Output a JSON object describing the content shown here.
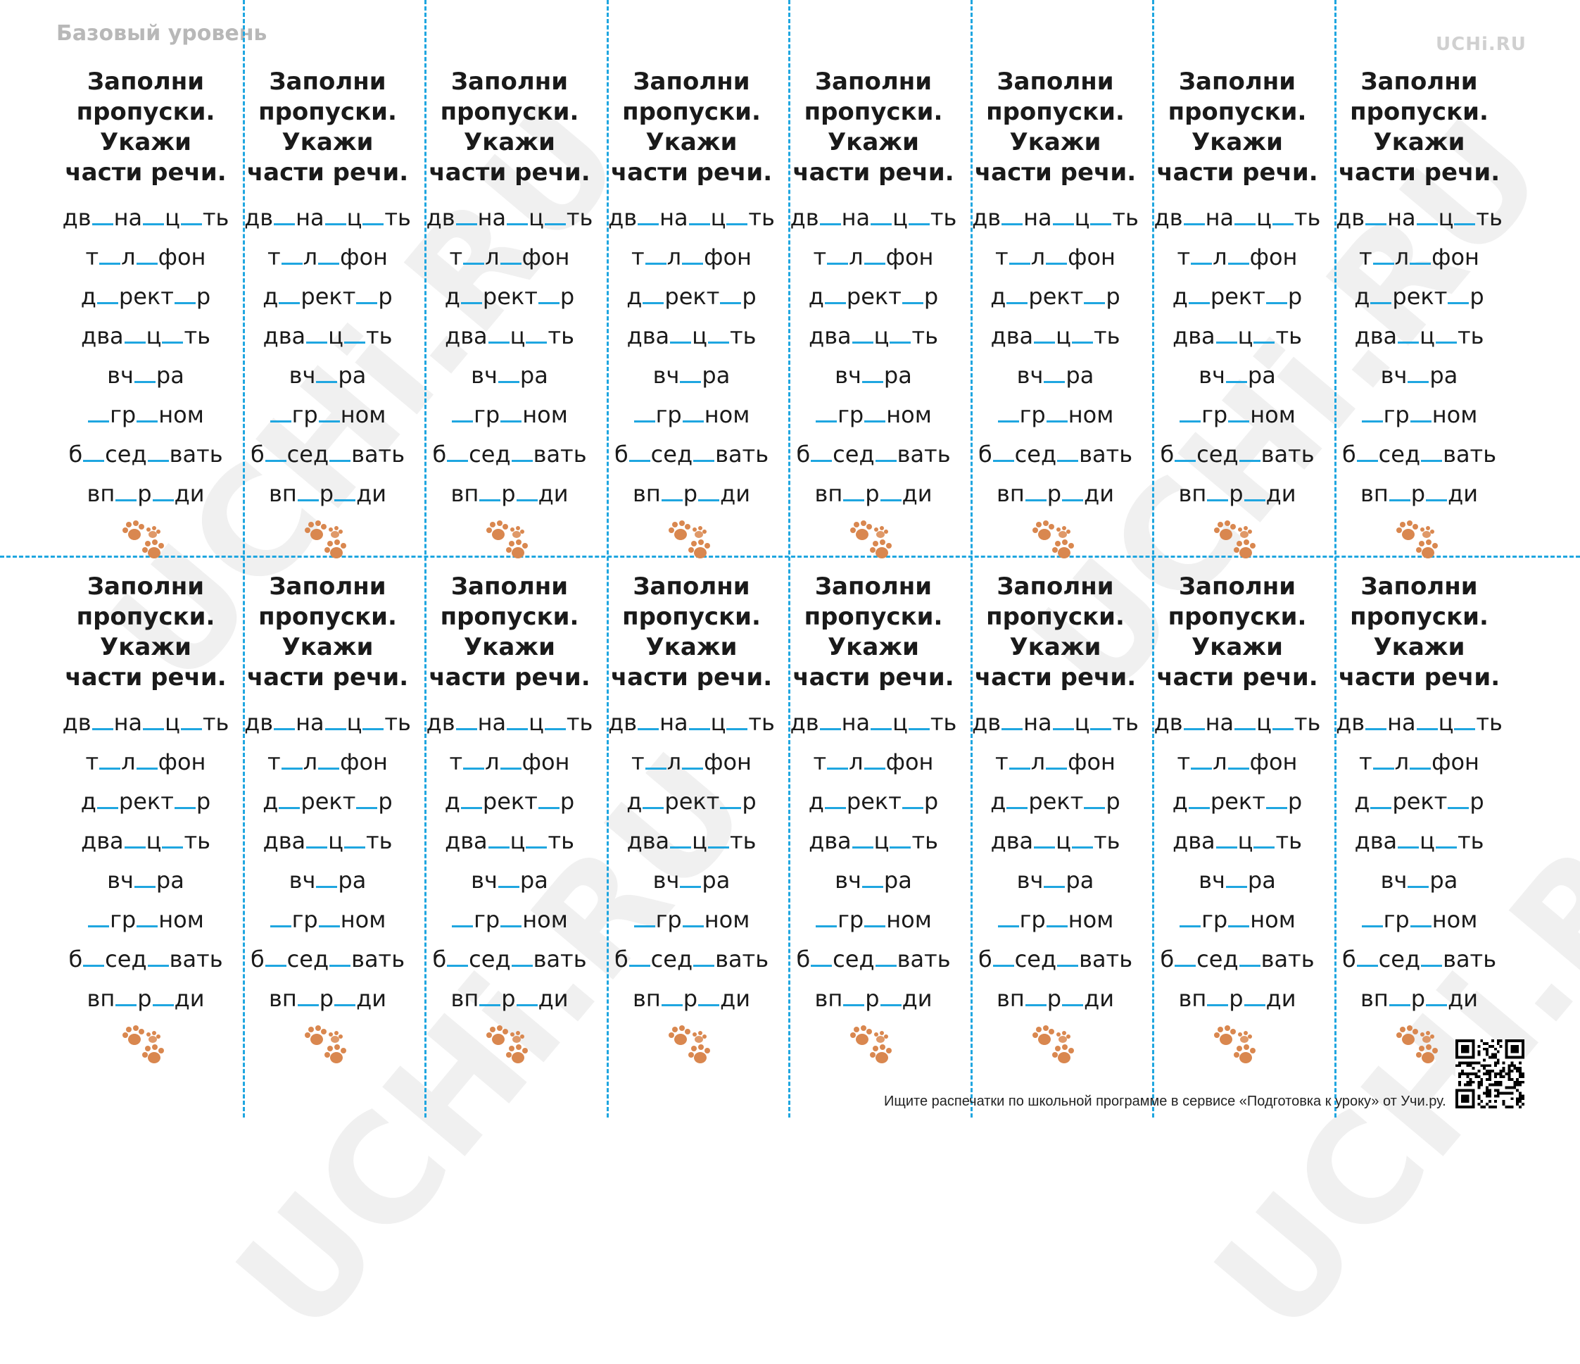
{
  "header": {
    "level": "Базовый уровень",
    "logo": "UCHi.RU"
  },
  "watermark": "UCHi.RU",
  "card": {
    "task": "Заполни пропуски. Укажи части речи.",
    "words": [
      [
        "дв",
        "на",
        "ц",
        "ть"
      ],
      [
        "т",
        "л",
        "фон"
      ],
      [
        "д",
        "рект",
        "р"
      ],
      [
        "два",
        "ц",
        "ть"
      ],
      [
        "вч",
        "ра"
      ],
      [
        "",
        "гр",
        "ном"
      ],
      [
        "б",
        "сед",
        "вать"
      ],
      [
        "вп",
        "р",
        "ди"
      ]
    ],
    "decoration_icon": "paw-prints-icon"
  },
  "grid": {
    "columns": 8,
    "rows": 2
  },
  "colors": {
    "cut_line": "#1fa6e0",
    "blank": "#1fa6e0",
    "paw": "#d9874f",
    "watermark": "#f0f0f0"
  },
  "footer": {
    "text": "Ищите распечатки по школьной программе в сервисе «Подготовка к уроку» от Учи.ру."
  },
  "qr_icon": "qr-code-icon"
}
